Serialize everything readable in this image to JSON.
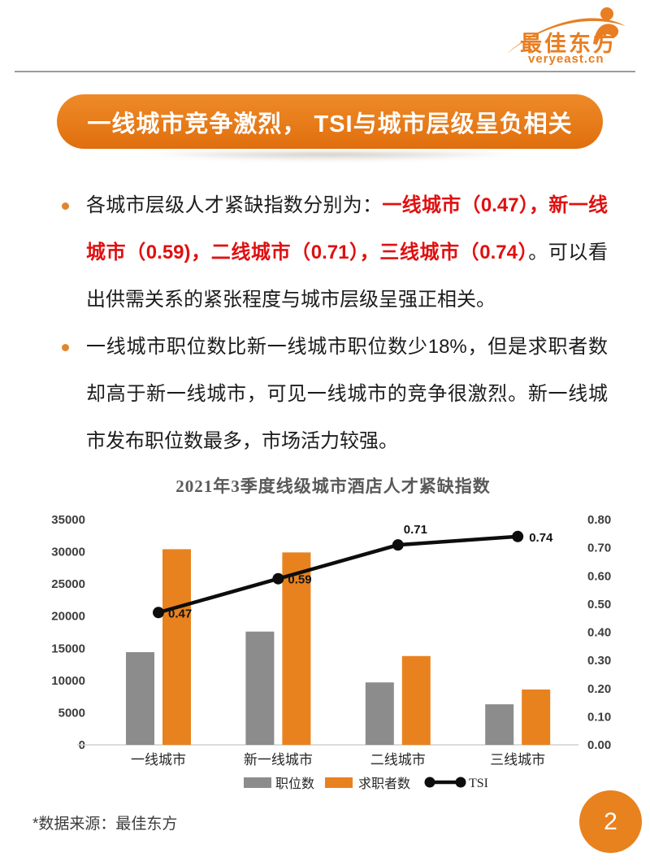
{
  "page": {
    "logo": {
      "name": "最佳东方",
      "domain": "veryeast.cn"
    },
    "banner": {
      "title": "一线城市竞争激烈， TSI与城市层级呈负相关"
    },
    "bullets": [
      {
        "segments": [
          {
            "text": "各城市层级人才紧缺指数分别为：",
            "style": "normal"
          },
          {
            "text": "一线城市（0.47），新一线城市（0.59)，二线城市（0.71），三线城市（0.74）",
            "style": "red"
          },
          {
            "text": "。可以看出供需关系的紧张程度与城市层级呈强正相关。",
            "style": "normal"
          }
        ]
      },
      {
        "segments": [
          {
            "text": "一线城市职位数比新一线城市职位数少18%，但是求职者数却高于新一线城市，可见一线城市的竞争很激烈。新一线城市发布职位数最多，市场活力较强。",
            "style": "normal"
          }
        ]
      }
    ],
    "footer": {
      "source_note": "*数据来源：最佳东方",
      "page_number": "2"
    }
  },
  "chart_data": {
    "type": "bar",
    "subtype": "combo-bar-line-dual-axis",
    "title": "2021年3季度线级城市酒店人才紧缺指数",
    "categories": [
      "一线城市",
      "新一线城市",
      "二线城市",
      "三线城市"
    ],
    "series": [
      {
        "name": "职位数",
        "type": "bar",
        "axis": "left",
        "color": "#8c8c8c",
        "values": [
          14400,
          17600,
          9700,
          6300
        ]
      },
      {
        "name": "求职者数",
        "type": "bar",
        "axis": "left",
        "color": "#e8821f",
        "values": [
          30400,
          29900,
          13800,
          8600
        ]
      },
      {
        "name": "TSI",
        "type": "line",
        "axis": "right",
        "color": "#0d0d0d",
        "values": [
          0.47,
          0.59,
          0.71,
          0.74
        ],
        "point_labels": [
          "0.47",
          "0.59",
          "0.71",
          "0.74"
        ]
      }
    ],
    "left_axis": {
      "min": 0,
      "max": 35000,
      "step": 5000,
      "tick_labels": [
        "0",
        "5000",
        "10000",
        "15000",
        "20000",
        "25000",
        "30000",
        "35000"
      ]
    },
    "right_axis": {
      "min": 0,
      "max": 0.8,
      "step": 0.1,
      "tick_labels": [
        "0.00",
        "0.10",
        "0.20",
        "0.30",
        "0.40",
        "0.50",
        "0.60",
        "0.70",
        "0.80"
      ]
    },
    "grid": false,
    "legend_position": "bottom"
  }
}
